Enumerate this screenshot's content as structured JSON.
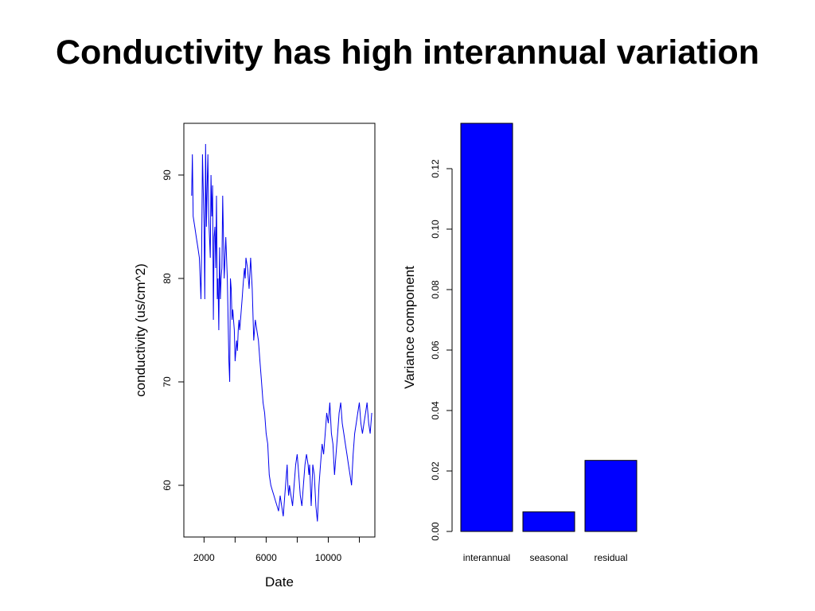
{
  "title": "Conductivity has high interannual variation",
  "colors": {
    "series": "#0000ee",
    "bar_fill": "#0000ff",
    "frame": "#000000"
  },
  "chart_data": [
    {
      "type": "line",
      "xlabel": "Date",
      "ylabel": "conductivity (us/cm^2)",
      "xlim": [
        700,
        13000
      ],
      "ylim": [
        55,
        95
      ],
      "xticks": [
        2000,
        4000,
        6000,
        8000,
        10000,
        12000
      ],
      "xtick_labels": [
        "2000",
        "",
        "6000",
        "",
        "10000",
        ""
      ],
      "yticks": [
        60,
        70,
        80,
        90
      ],
      "ytick_labels": [
        "60",
        "70",
        "80",
        "90"
      ],
      "grid": false,
      "series": [
        {
          "x": [
            1200,
            1250,
            1300,
            1350,
            1400,
            1500,
            1600,
            1700,
            1800,
            1850,
            1900,
            2000,
            2050,
            2100,
            2150,
            2200,
            2250,
            2300,
            2350,
            2400,
            2450,
            2500,
            2550,
            2600,
            2650,
            2700,
            2750,
            2800,
            2850,
            2900,
            2950,
            3000,
            3050,
            3100,
            3150,
            3200,
            3300,
            3400,
            3500,
            3550,
            3600,
            3650,
            3700,
            3750,
            3800,
            3850,
            3900,
            3950,
            4000,
            4100,
            4150,
            4200,
            4250,
            4300,
            4350,
            4400,
            4450,
            4500,
            4550,
            4600,
            4650,
            4700,
            4800,
            4900,
            5000,
            5100,
            5200,
            5300,
            5400,
            5500,
            5600,
            5700,
            5800,
            5900,
            6000,
            6100,
            6200,
            6300,
            6400,
            6500,
            6600,
            6700,
            6800,
            6900,
            7000,
            7100,
            7200,
            7250,
            7300,
            7350,
            7400,
            7450,
            7500,
            7600,
            7700,
            7800,
            7900,
            8000,
            8100,
            8200,
            8300,
            8400,
            8500,
            8600,
            8700,
            8750,
            8800,
            8850,
            8900,
            9000,
            9100,
            9200,
            9300,
            9400,
            9500,
            9600,
            9700,
            9800,
            9900,
            10000,
            10100,
            10200,
            10300,
            10400,
            10500,
            10600,
            10700,
            10800,
            10900,
            11000,
            11100,
            11200,
            11300,
            11400,
            11500,
            11600,
            11700,
            11800,
            11900,
            12000,
            12100,
            12200,
            12300,
            12400,
            12500,
            12600,
            12700,
            12800
          ],
          "y": [
            88,
            92,
            86,
            85.5,
            85,
            84,
            83,
            82,
            78,
            83,
            92,
            85,
            78,
            93,
            85,
            89,
            92,
            86,
            84,
            82,
            90,
            86,
            89,
            76,
            84,
            85,
            81,
            88,
            78,
            80,
            75,
            83,
            78,
            80,
            81,
            88,
            80,
            84,
            80,
            76,
            72,
            70,
            80,
            79,
            76,
            77,
            76,
            75,
            72,
            74,
            73,
            75,
            76,
            75,
            76,
            77,
            78,
            79,
            80,
            81,
            80,
            82,
            81,
            79,
            82,
            79,
            74,
            76,
            75,
            74,
            72,
            70,
            68,
            67,
            65,
            64,
            61,
            60,
            59.5,
            59,
            58.5,
            58,
            57.5,
            59,
            58,
            57,
            59,
            60,
            61,
            62,
            60,
            59,
            60,
            59,
            58,
            60,
            62,
            63,
            61,
            59,
            58,
            60,
            62,
            63,
            62,
            61,
            62,
            60,
            58,
            62,
            61,
            58,
            56.5,
            60,
            62,
            64,
            63,
            65,
            67,
            66,
            68,
            65,
            64,
            61,
            63,
            65,
            67,
            68,
            66,
            65,
            64,
            63,
            62,
            61,
            60,
            63,
            65,
            66,
            67,
            68,
            66,
            65,
            66,
            67,
            68,
            66,
            65,
            67
          ]
        }
      ]
    },
    {
      "type": "bar",
      "ylabel": "Variance component",
      "ylim": [
        0,
        0.135
      ],
      "yticks": [
        0,
        0.02,
        0.04,
        0.06,
        0.08,
        0.1,
        0.12
      ],
      "ytick_labels": [
        "0.00",
        "0.02",
        "0.04",
        "0.06",
        "0.08",
        "0.10",
        "0.12"
      ],
      "categories": [
        "interannual",
        "seasonal",
        "residual"
      ],
      "values": [
        0.135,
        0.0065,
        0.0235
      ],
      "grid": false
    }
  ]
}
